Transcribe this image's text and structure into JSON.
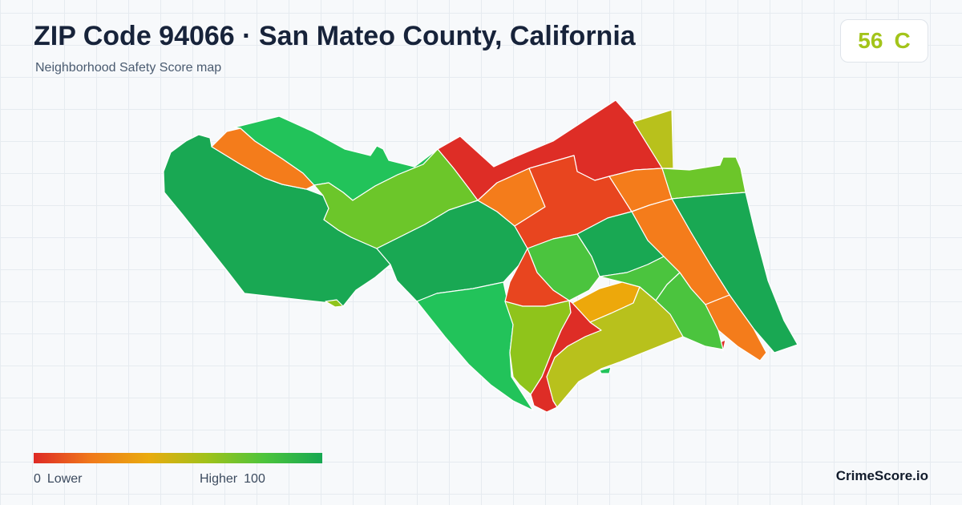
{
  "header": {
    "title": "ZIP Code 94066 · San Mateo County, California",
    "subtitle": "Neighborhood Safety Score map"
  },
  "score": {
    "value": "56",
    "grade": "C",
    "color": "#a3c41a"
  },
  "legend": {
    "low_value": "0",
    "low_label": "Lower",
    "high_label": "Higher",
    "high_value": "100",
    "gradient": [
      "#de2a25",
      "#f07a1a",
      "#e9ab0e",
      "#a0c21a",
      "#4cc43c",
      "#17a852"
    ]
  },
  "brand": "CrimeScore.io",
  "map": {
    "colors": {
      "red": "#de2d26",
      "red_orange": "#e8451f",
      "orange": "#f47c1b",
      "amber": "#eda80b",
      "olive": "#b8c11c",
      "yellow_green": "#8fc41b",
      "lime": "#6cc62a",
      "light_green": "#4bc43e",
      "green": "#22c35a",
      "dark_green": "#19a853"
    }
  }
}
